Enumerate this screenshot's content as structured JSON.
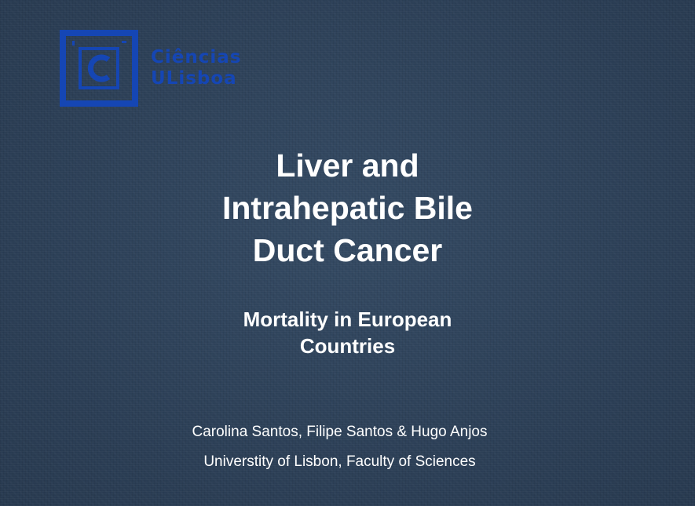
{
  "logo": {
    "line1": "Ciências",
    "line2": "ULisboa",
    "brand_color": "#1546b4"
  },
  "title": {
    "line1": "Liver and",
    "line2": "Intrahepatic Bile",
    "line3": "Duct Cancer"
  },
  "subtitle": {
    "line1": "Mortality in European",
    "line2": "Countries"
  },
  "authors": "Carolina Santos, Filipe Santos & Hugo Anjos",
  "affiliation": "Universtity of Lisbon, Faculty of Sciences",
  "colors": {
    "background": "#2d4159",
    "text": "#ffffff"
  }
}
